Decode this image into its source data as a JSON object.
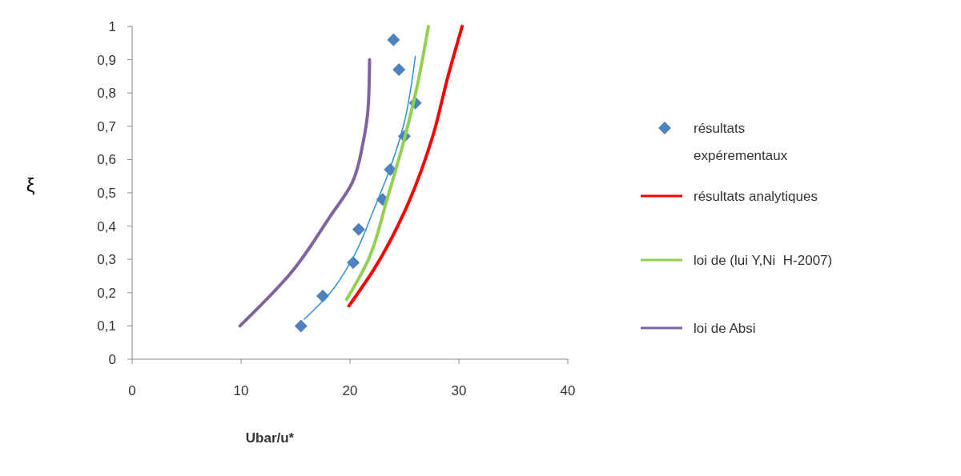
{
  "chart_data": {
    "type": "scatter",
    "xlabel": "Ubar/u*",
    "ylabel": "ξ",
    "xlim": [
      0,
      40
    ],
    "xticks": [
      0,
      10,
      20,
      30,
      40
    ],
    "ylim": [
      0,
      1
    ],
    "yticks": [
      0,
      {
        "value": 0.1,
        "label": "0,1"
      },
      {
        "value": 0.2,
        "label": "0,2"
      },
      {
        "value": 0.3,
        "label": "0,3"
      },
      {
        "value": 0.4,
        "label": "0,4"
      },
      {
        "value": 0.5,
        "label": "0,5"
      },
      {
        "value": 0.6,
        "label": "0,6"
      },
      {
        "value": 0.7,
        "label": "0,7"
      },
      {
        "value": 0.8,
        "label": "0,8"
      },
      {
        "value": 0.9,
        "label": "0,9"
      },
      1
    ],
    "grid": false,
    "legend": "right",
    "series": [
      {
        "name": "résultats expérementaux",
        "marker": "diamond",
        "color": "#4f81bd",
        "x": [
          15.5,
          17.5,
          20.3,
          20.8,
          23,
          23.7,
          25,
          26,
          24.5,
          24
        ],
        "values": [
          0.1,
          0.19,
          0.29,
          0.39,
          0.48,
          0.57,
          0.67,
          0.77,
          0.87,
          0.96
        ]
      },
      {
        "name": "résultats analytiques",
        "type": "line",
        "color": "#ff0000",
        "x": [
          19.9,
          22.2,
          25.1,
          27.6,
          29,
          30.3
        ],
        "values": [
          0.16,
          0.27,
          0.45,
          0.67,
          0.85,
          1
        ]
      },
      {
        "name": "loi de (lui Y,Ni  H-2007)",
        "type": "line",
        "color": "#92d050",
        "x": [
          19.7,
          21.7,
          23.4,
          24.9,
          26.1,
          27.2
        ],
        "values": [
          0.18,
          0.3,
          0.48,
          0.65,
          0.81,
          1
        ]
      },
      {
        "name": "loi de Absi",
        "type": "line",
        "color": "#8064a2",
        "x": [
          9.9,
          14.6,
          18.2,
          20.2,
          21.2,
          21.7,
          21.8
        ],
        "values": [
          0.1,
          0.26,
          0.43,
          0.53,
          0.65,
          0.77,
          0.9
        ]
      },
      {
        "type": "line",
        "color": "#2e8fd8",
        "x": [
          15.8,
          18.2,
          20.2,
          22.2,
          23.7,
          24.9,
          26
        ],
        "values": [
          0.12,
          0.2,
          0.3,
          0.45,
          0.575,
          0.7,
          0.91
        ]
      }
    ]
  }
}
